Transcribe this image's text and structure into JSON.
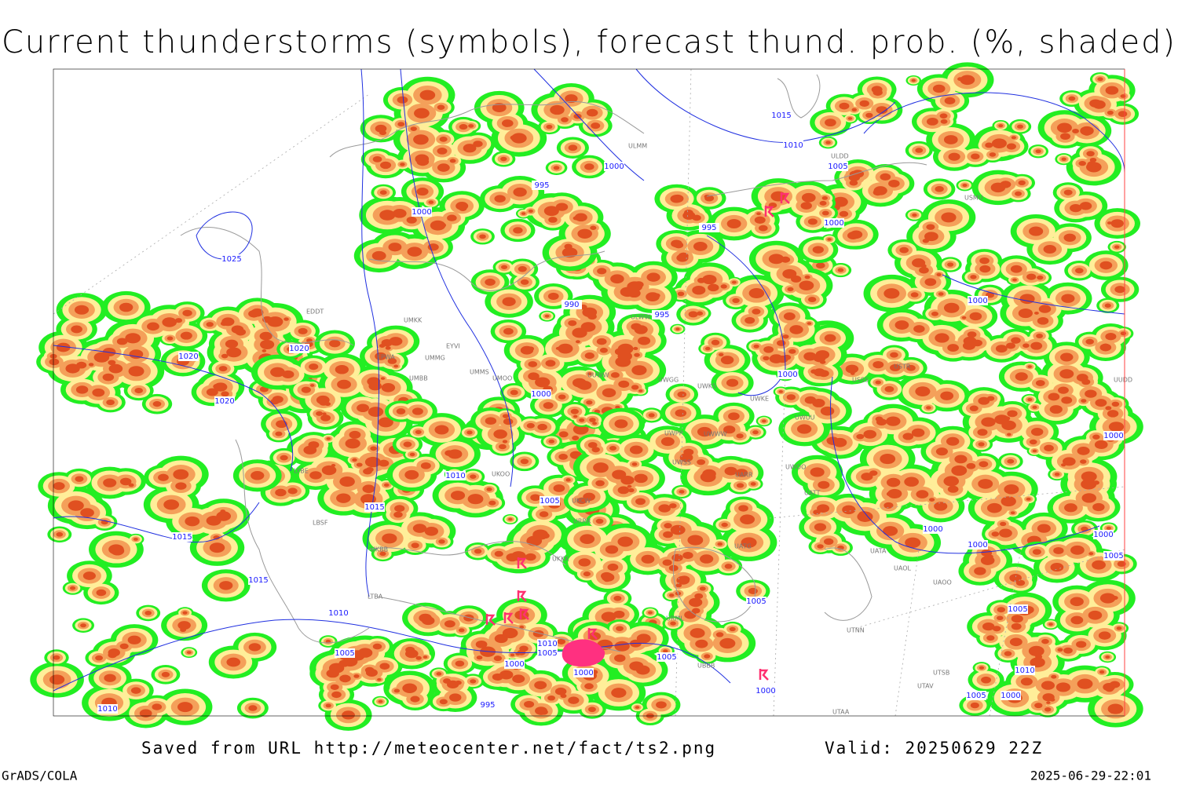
{
  "header": {
    "title": "Current thunderstorms (symbols), forecast thund. prob. (%, shaded)"
  },
  "map": {
    "isobar_labels": [
      "1015",
      "1010",
      "1005",
      "1000",
      "995",
      "1000",
      "995",
      "1000",
      "1025",
      "990",
      "995",
      "1000",
      "1020",
      "1020",
      "1000",
      "1000",
      "1020",
      "1000",
      "1010",
      "1005",
      "1015",
      "1015",
      "1000",
      "1000",
      "1000",
      "1005",
      "1015",
      "1010",
      "1005",
      "1005",
      "1010",
      "1005",
      "1005",
      "1005",
      "1000",
      "1000",
      "1010",
      "1000",
      "1005",
      "1000",
      "995",
      "1010"
    ],
    "station_labels": [
      "ULDD",
      "ULMM",
      "EDDT",
      "UMKK",
      "EYVI",
      "UMMG",
      "UMMS",
      "UMOO",
      "UMBB",
      "EPWA",
      "ULWW",
      "UUWW",
      "UWGG",
      "UWKS",
      "UWKE",
      "UWPP",
      "UWWW",
      "UWSS",
      "UARR",
      "UWOO",
      "UATT",
      "UATG",
      "UATA",
      "UAOL",
      "UAOO",
      "UTNN",
      "UTAA",
      "UBBB",
      "URML",
      "UKKK",
      "UKOO",
      "UKCW",
      "URRR",
      "UKBB",
      "LBSF",
      "LYBE",
      "LTBA",
      "USSS",
      "USTR",
      "UWUU",
      "UTSB",
      "UTAV",
      "USMU",
      "UUDD"
    ]
  },
  "footer": {
    "source": "Saved from URL http://meteocenter.net/fact/ts2.png",
    "valid": "Valid: 20250629 22Z",
    "software": "GrADS/COLA",
    "timestamp": "2025-06-29-22:01"
  }
}
